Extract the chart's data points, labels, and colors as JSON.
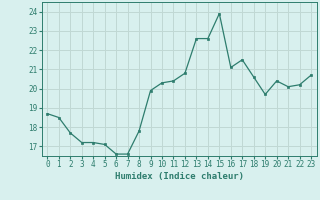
{
  "x": [
    0,
    1,
    2,
    3,
    4,
    5,
    6,
    7,
    8,
    9,
    10,
    11,
    12,
    13,
    14,
    15,
    16,
    17,
    18,
    19,
    20,
    21,
    22,
    23
  ],
  "y": [
    18.7,
    18.5,
    17.7,
    17.2,
    17.2,
    17.1,
    16.6,
    16.6,
    17.8,
    19.9,
    20.3,
    20.4,
    20.8,
    22.6,
    22.6,
    23.9,
    21.1,
    21.5,
    20.6,
    19.7,
    20.4,
    20.1,
    20.2,
    20.7
  ],
  "line_color": "#2e7d6e",
  "marker": "s",
  "marker_size": 2.0,
  "bg_color": "#d8f0ee",
  "grid_color": "#c0d8d4",
  "xlabel": "Humidex (Indice chaleur)",
  "ylim": [
    16.5,
    24.5
  ],
  "xlim": [
    -0.5,
    23.5
  ],
  "yticks": [
    17,
    18,
    19,
    20,
    21,
    22,
    23,
    24
  ],
  "xticks": [
    0,
    1,
    2,
    3,
    4,
    5,
    6,
    7,
    8,
    9,
    10,
    11,
    12,
    13,
    14,
    15,
    16,
    17,
    18,
    19,
    20,
    21,
    22,
    23
  ],
  "tick_color": "#2e7d6e",
  "label_fontsize": 6.5,
  "tick_fontsize": 5.5,
  "linewidth": 0.9
}
